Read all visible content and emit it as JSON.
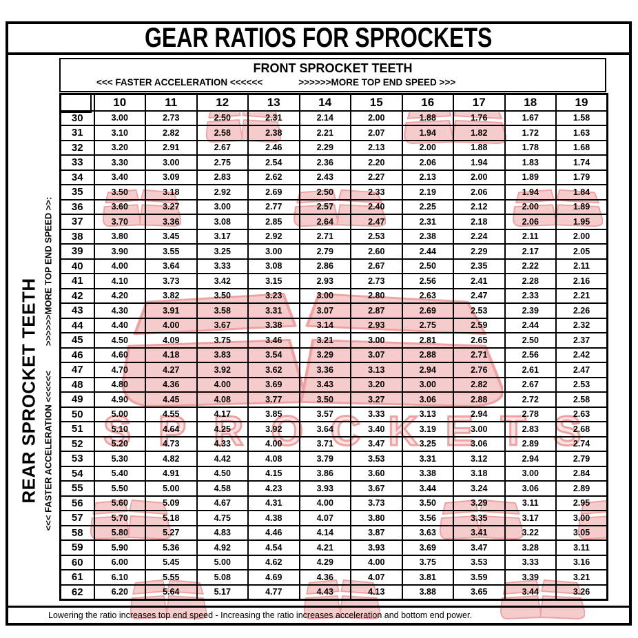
{
  "title": "GEAR RATIOS FOR SPROCKETS",
  "front_header": {
    "label": "FRONT SPROCKET TEETH",
    "accel": "<<< FASTER  ACCELERATION <<<<<<",
    "speed": ">>>>>>MORE TOP END SPEED >>>"
  },
  "side": {
    "rear": "REAR SPROCKET TEETH",
    "accel": "<<< FASTER  ACCELERATION <<<<<<",
    "speed": ">>>>>>MORE TOP END SPEED >>:"
  },
  "footnote": "Lowering the ratio increases top end speed - Increasing the ratio increases acceleration and bottom end power.",
  "watermark": {
    "monogram": "JT",
    "word": "SPROCKETS",
    "fill": "#f6cbcb",
    "stroke": "#eea2a2",
    "word_fill": "#fbe3e3"
  },
  "table": {
    "corner": "",
    "col_headers": [
      "10",
      "11",
      "12",
      "13",
      "14",
      "15",
      "16",
      "17",
      "18",
      "19"
    ],
    "rows": [
      [
        "30",
        "3.00",
        "2.73",
        "2.50",
        "2.31",
        "2.14",
        "2.00",
        "1.88",
        "1.76",
        "1.67",
        "1.58"
      ],
      [
        "31",
        "3.10",
        "2.82",
        "2.58",
        "2.38",
        "2.21",
        "2.07",
        "1.94",
        "1.82",
        "1.72",
        "1.63"
      ],
      [
        "32",
        "3.20",
        "2.91",
        "2.67",
        "2.46",
        "2.29",
        "2.13",
        "2.00",
        "1.88",
        "1.78",
        "1.68"
      ],
      [
        "33",
        "3.30",
        "3.00",
        "2.75",
        "2.54",
        "2.36",
        "2.20",
        "2.06",
        "1.94",
        "1.83",
        "1.74"
      ],
      [
        "34",
        "3.40",
        "3.09",
        "2.83",
        "2.62",
        "2.43",
        "2.27",
        "2.13",
        "2.00",
        "1.89",
        "1.79"
      ],
      [
        "35",
        "3.50",
        "3.18",
        "2.92",
        "2.69",
        "2.50",
        "2.33",
        "2.19",
        "2.06",
        "1.94",
        "1.84"
      ],
      [
        "36",
        "3.60",
        "3.27",
        "3.00",
        "2.77",
        "2.57",
        "2.40",
        "2.25",
        "2.12",
        "2.00",
        "1.89"
      ],
      [
        "37",
        "3.70",
        "3.36",
        "3.08",
        "2.85",
        "2.64",
        "2.47",
        "2.31",
        "2.18",
        "2.06",
        "1.95"
      ],
      [
        "38",
        "3.80",
        "3.45",
        "3.17",
        "2.92",
        "2.71",
        "2.53",
        "2.38",
        "2.24",
        "2.11",
        "2.00"
      ],
      [
        "39",
        "3.90",
        "3.55",
        "3.25",
        "3.00",
        "2.79",
        "2.60",
        "2.44",
        "2.29",
        "2.17",
        "2.05"
      ],
      [
        "40",
        "4.00",
        "3.64",
        "3.33",
        "3.08",
        "2.86",
        "2.67",
        "2.50",
        "2.35",
        "2.22",
        "2.11"
      ],
      [
        "41",
        "4.10",
        "3.73",
        "3.42",
        "3.15",
        "2.93",
        "2.73",
        "2.56",
        "2.41",
        "2.28",
        "2.16"
      ],
      [
        "42",
        "4.20",
        "3.82",
        "3.50",
        "3.23",
        "3.00",
        "2.80",
        "2.63",
        "2.47",
        "2.33",
        "2.21"
      ],
      [
        "43",
        "4.30",
        "3.91",
        "3.58",
        "3.31",
        "3.07",
        "2.87",
        "2.69",
        "2.53",
        "2.39",
        "2.26"
      ],
      [
        "44",
        "4.40",
        "4.00",
        "3.67",
        "3.38",
        "3.14",
        "2.93",
        "2.75",
        "2.59",
        "2.44",
        "2.32"
      ],
      [
        "45",
        "4.50",
        "4.09",
        "3.75",
        "3.46",
        "3.21",
        "3.00",
        "2.81",
        "2.65",
        "2.50",
        "2.37"
      ],
      [
        "46",
        "4.60",
        "4.18",
        "3.83",
        "3.54",
        "3.29",
        "3.07",
        "2.88",
        "2.71",
        "2.56",
        "2.42"
      ],
      [
        "47",
        "4.70",
        "4.27",
        "3.92",
        "3.62",
        "3.36",
        "3.13",
        "2.94",
        "2.76",
        "2.61",
        "2.47"
      ],
      [
        "48",
        "4.80",
        "4.36",
        "4.00",
        "3.69",
        "3.43",
        "3.20",
        "3.00",
        "2.82",
        "2.67",
        "2.53"
      ],
      [
        "49",
        "4.90",
        "4.45",
        "4.08",
        "3.77",
        "3.50",
        "3.27",
        "3.06",
        "2.88",
        "2.72",
        "2.58"
      ],
      [
        "50",
        "5.00",
        "4.55",
        "4.17",
        "3.85",
        "3.57",
        "3.33",
        "3.13",
        "2.94",
        "2.78",
        "2.63"
      ],
      [
        "51",
        "5.10",
        "4.64",
        "4.25",
        "3.92",
        "3.64",
        "3.40",
        "3.19",
        "3.00",
        "2.83",
        "2.68"
      ],
      [
        "52",
        "5.20",
        "4.73",
        "4.33",
        "4.00",
        "3.71",
        "3.47",
        "3.25",
        "3.06",
        "2.89",
        "2.74"
      ],
      [
        "53",
        "5.30",
        "4.82",
        "4.42",
        "4.08",
        "3.79",
        "3.53",
        "3.31",
        "3.12",
        "2.94",
        "2.79"
      ],
      [
        "54",
        "5.40",
        "4.91",
        "4.50",
        "4.15",
        "3.86",
        "3.60",
        "3.38",
        "3.18",
        "3.00",
        "2.84"
      ],
      [
        "55",
        "5.50",
        "5.00",
        "4.58",
        "4.23",
        "3.93",
        "3.67",
        "3.44",
        "3.24",
        "3.06",
        "2.89"
      ],
      [
        "56",
        "5.60",
        "5.09",
        "4.67",
        "4.31",
        "4.00",
        "3.73",
        "3.50",
        "3.29",
        "3.11",
        "2.95"
      ],
      [
        "57",
        "5.70",
        "5.18",
        "4.75",
        "4.38",
        "4.07",
        "3.80",
        "3.56",
        "3.35",
        "3.17",
        "3.00"
      ],
      [
        "58",
        "5.80",
        "5.27",
        "4.83",
        "4.46",
        "4.14",
        "3.87",
        "3.63",
        "3.41",
        "3.22",
        "3.05"
      ],
      [
        "59",
        "5.90",
        "5.36",
        "4.92",
        "4.54",
        "4.21",
        "3.93",
        "3.69",
        "3.47",
        "3.28",
        "3.11"
      ],
      [
        "60",
        "6.00",
        "5.45",
        "5.00",
        "4.62",
        "4.29",
        "4.00",
        "3.75",
        "3.53",
        "3.33",
        "3.16"
      ],
      [
        "61",
        "6.10",
        "5.55",
        "5.08",
        "4.69",
        "4.36",
        "4.07",
        "3.81",
        "3.59",
        "3.39",
        "3.21"
      ],
      [
        "62",
        "6.20",
        "5.64",
        "5.17",
        "4.77",
        "4.43",
        "4.13",
        "3.88",
        "3.65",
        "3.44",
        "3.26"
      ]
    ]
  }
}
